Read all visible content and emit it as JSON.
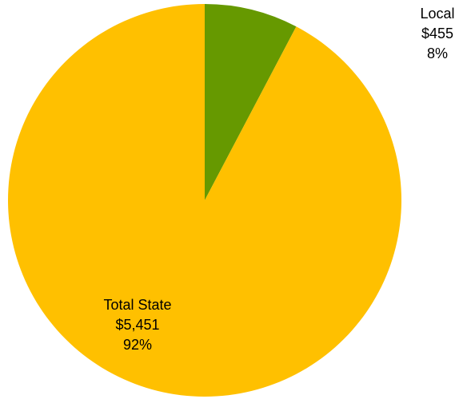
{
  "chart_data": {
    "type": "pie",
    "title": "",
    "slices": [
      {
        "label": "Local",
        "value_text": "$455",
        "percent_text": "8%",
        "value": 455,
        "percent": 8,
        "color": "#669900"
      },
      {
        "label": "Total State",
        "value_text": "$5,451",
        "percent_text": "92%",
        "value": 5451,
        "percent": 92,
        "color": "#FFC000"
      }
    ]
  }
}
